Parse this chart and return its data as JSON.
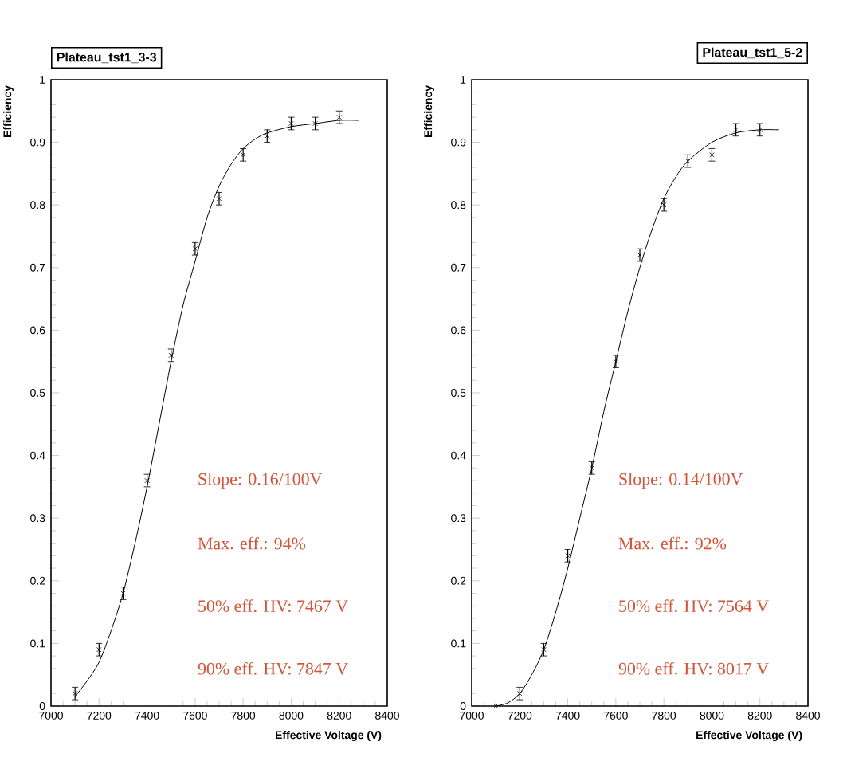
{
  "chart_data": [
    {
      "type": "scatter",
      "title": "Plateau_tst1_3-3",
      "xlabel": "Effective Voltage (V)",
      "ylabel": "Efficiency",
      "x": [
        7100,
        7200,
        7300,
        7400,
        7500,
        7600,
        7700,
        7800,
        7900,
        8000,
        8100,
        8200
      ],
      "xlim": [
        7000,
        8400
      ],
      "ylim": [
        0,
        1
      ],
      "xticks": [
        7000,
        7200,
        7400,
        7600,
        7800,
        8000,
        8200,
        8400
      ],
      "yticks": [
        0,
        0.1,
        0.2,
        0.3,
        0.4,
        0.5,
        0.6,
        0.7,
        0.8,
        0.9,
        1
      ],
      "grid": false,
      "series": [
        {
          "marker": "cross",
          "color": "#000000",
          "values": [
            0.02,
            0.09,
            0.18,
            0.36,
            0.56,
            0.73,
            0.81,
            0.88,
            0.91,
            0.93,
            0.93,
            0.94
          ],
          "errors": [
            0.01,
            0.01,
            0.01,
            0.01,
            0.01,
            0.01,
            0.01,
            0.01,
            0.01,
            0.01,
            0.01,
            0.01
          ]
        },
        {
          "type": "line",
          "color": "#000000",
          "x": [
            7100,
            7150,
            7200,
            7250,
            7300,
            7350,
            7400,
            7450,
            7500,
            7550,
            7600,
            7650,
            7700,
            7750,
            7800,
            7850,
            7900,
            8000,
            8100,
            8200,
            8280
          ],
          "values": [
            0.015,
            0.04,
            0.07,
            0.12,
            0.18,
            0.26,
            0.35,
            0.45,
            0.55,
            0.64,
            0.71,
            0.78,
            0.83,
            0.865,
            0.89,
            0.905,
            0.915,
            0.925,
            0.93,
            0.935,
            0.935
          ]
        }
      ],
      "annotations": [
        "Slope: 0.16/100V",
        "Max. eff.: 94%",
        "50% eff. HV: 7467 V",
        "90% eff. HV: 7847 V"
      ]
    },
    {
      "type": "scatter",
      "title": "Plateau_tst1_5-2",
      "xlabel": "Effective Voltage (V)",
      "ylabel": "Efficiency",
      "x": [
        7100,
        7200,
        7300,
        7400,
        7500,
        7600,
        7700,
        7800,
        7900,
        8000,
        8100,
        8200
      ],
      "xlim": [
        7000,
        8400
      ],
      "ylim": [
        0,
        1
      ],
      "xticks": [
        7000,
        7200,
        7400,
        7600,
        7800,
        8000,
        8200,
        8400
      ],
      "yticks": [
        0,
        0.1,
        0.2,
        0.3,
        0.4,
        0.5,
        0.6,
        0.7,
        0.8,
        0.9,
        1
      ],
      "grid": false,
      "series": [
        {
          "marker": "cross",
          "color": "#000000",
          "values": [
            0.0,
            0.02,
            0.09,
            0.24,
            0.38,
            0.55,
            0.72,
            0.8,
            0.87,
            0.88,
            0.92,
            0.92
          ],
          "errors": [
            null,
            0.01,
            0.01,
            0.01,
            0.01,
            0.01,
            0.01,
            0.01,
            0.01,
            0.01,
            0.01,
            0.01
          ]
        },
        {
          "type": "line",
          "color": "#000000",
          "x": [
            7100,
            7150,
            7200,
            7250,
            7300,
            7350,
            7400,
            7450,
            7500,
            7550,
            7600,
            7650,
            7700,
            7750,
            7800,
            7850,
            7900,
            8000,
            8100,
            8200,
            8280
          ],
          "values": [
            0.0,
            0.005,
            0.02,
            0.05,
            0.09,
            0.15,
            0.22,
            0.3,
            0.38,
            0.47,
            0.55,
            0.63,
            0.7,
            0.76,
            0.81,
            0.845,
            0.87,
            0.9,
            0.915,
            0.92,
            0.92
          ]
        }
      ],
      "annotations": [
        "Slope: 0.14/100V",
        "Max. eff.: 92%",
        "50% eff. HV: 7564 V",
        "90% eff. HV: 8017 V"
      ]
    }
  ]
}
